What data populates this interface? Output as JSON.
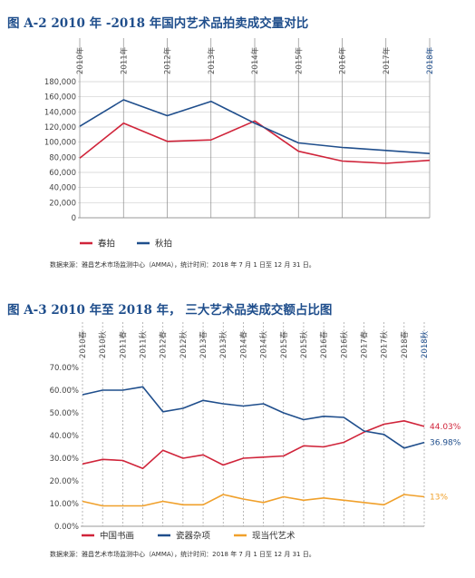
{
  "chart_data": [
    {
      "type": "line",
      "title": "图 A-2 2010 年 -2018 年国内艺术品拍卖成交量对比",
      "categories": [
        "2010年",
        "2011年",
        "2012年",
        "2013年",
        "2014年",
        "2015年",
        "2016年",
        "2017年",
        "2018年"
      ],
      "series": [
        {
          "name": "春拍",
          "color": "#d0243a",
          "values": [
            79000,
            125000,
            101000,
            103000,
            128000,
            88000,
            75000,
            72000,
            76000
          ]
        },
        {
          "name": "秋拍",
          "color": "#1f4e8c",
          "values": [
            121000,
            156000,
            135000,
            154000,
            125000,
            99000,
            93000,
            89000,
            85000
          ]
        }
      ],
      "yticks": [
        "0",
        "20,000",
        "40,000",
        "60,000",
        "80,000",
        "100,000",
        "120,000",
        "140,000",
        "160,000",
        "180,000"
      ],
      "ylim": [
        0,
        180000
      ],
      "grid": true,
      "legend": "bottom-left",
      "source": "数据来源：雅昌艺术市场监测中心（AMMA），统计时间：2018 年 7 月 1 日至 12 月 31 日。"
    },
    {
      "type": "line",
      "title": "图 A-3 2010 年至 2018 年，  三大艺术品类成交额占比图",
      "categories": [
        "2010春",
        "2010秋",
        "2011春",
        "2011秋",
        "2012春",
        "2012秋",
        "2013春",
        "2013秋",
        "2014春",
        "2014秋",
        "2015春",
        "2015秋",
        "2016春",
        "2016秋",
        "2017春",
        "2017秋",
        "2018春",
        "2018秋"
      ],
      "series": [
        {
          "name": "中国书画",
          "color": "#d0243a",
          "end_label": "44.03%",
          "values": [
            27.5,
            29.5,
            29.0,
            25.5,
            33.5,
            30.0,
            31.5,
            27.0,
            30.0,
            30.5,
            31.0,
            35.5,
            35.0,
            37.0,
            41.5,
            45.0,
            46.5,
            44.03
          ]
        },
        {
          "name": "瓷器杂项",
          "color": "#1f4e8c",
          "end_label": "36.98%",
          "values": [
            58.0,
            60.0,
            60.0,
            61.5,
            50.5,
            52.0,
            55.5,
            54.0,
            53.0,
            54.0,
            50.0,
            47.0,
            48.5,
            48.0,
            42.0,
            40.5,
            34.5,
            36.98
          ]
        },
        {
          "name": "现当代艺术",
          "color": "#f0a02b",
          "end_label": "13%",
          "values": [
            11.0,
            9.0,
            9.0,
            9.0,
            11.0,
            9.5,
            9.5,
            14.0,
            12.0,
            10.5,
            13.0,
            11.5,
            12.5,
            11.5,
            10.5,
            9.5,
            14.0,
            13.0
          ]
        }
      ],
      "yticks": [
        "0.00%",
        "10.00%",
        "20.00%",
        "30.00%",
        "40.00%",
        "50.00%",
        "60.00%",
        "70.00%"
      ],
      "ylim": [
        0,
        70
      ],
      "grid": false,
      "legend": "bottom-left",
      "source": "数据来源：雅昌艺术市场监测中心（AMMA），统计时间：2018 年 7 月 1 日至 12 月 31 日。"
    }
  ]
}
